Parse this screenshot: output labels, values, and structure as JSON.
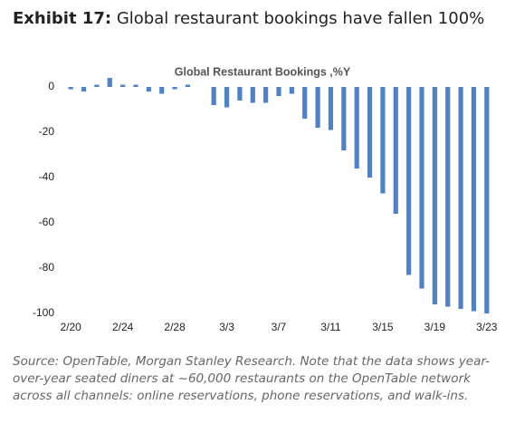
{
  "header": {
    "exhibit": "Exhibit 17:",
    "title": "Global restaurant bookings have fallen 100%"
  },
  "chart_data": {
    "type": "bar",
    "title": "Global Restaurant Bookings ,%Y",
    "categories": [
      "2/20",
      null,
      null,
      null,
      "2/24",
      null,
      null,
      null,
      "2/28",
      null,
      null,
      null,
      "3/3",
      null,
      null,
      null,
      "3/7",
      null,
      null,
      null,
      "3/11",
      null,
      null,
      null,
      "3/15",
      null,
      null,
      null,
      "3/19",
      null,
      null,
      null,
      "3/23"
    ],
    "values": [
      -1,
      -2,
      1,
      4,
      1,
      1,
      -2,
      -3,
      -1,
      1,
      0,
      -8,
      -9,
      -6,
      -7,
      -7,
      -4,
      -3,
      -14,
      -18,
      -19,
      -28,
      -36,
      -40,
      -47,
      -56,
      -83,
      -89,
      -96,
      -97,
      -98,
      -99,
      -100
    ],
    "color": "#4f81c7",
    "ylim": [
      -100,
      8
    ],
    "yticks": [
      0,
      -20,
      -40,
      -60,
      -80,
      -100
    ],
    "grid": false
  },
  "source": "Source: OpenTable, Morgan Stanley Research. Note that the data shows year-over-year seated diners at ~60,000 restaurants on the OpenTable network across all channels: online reservations, phone reservations, and walk-ins."
}
